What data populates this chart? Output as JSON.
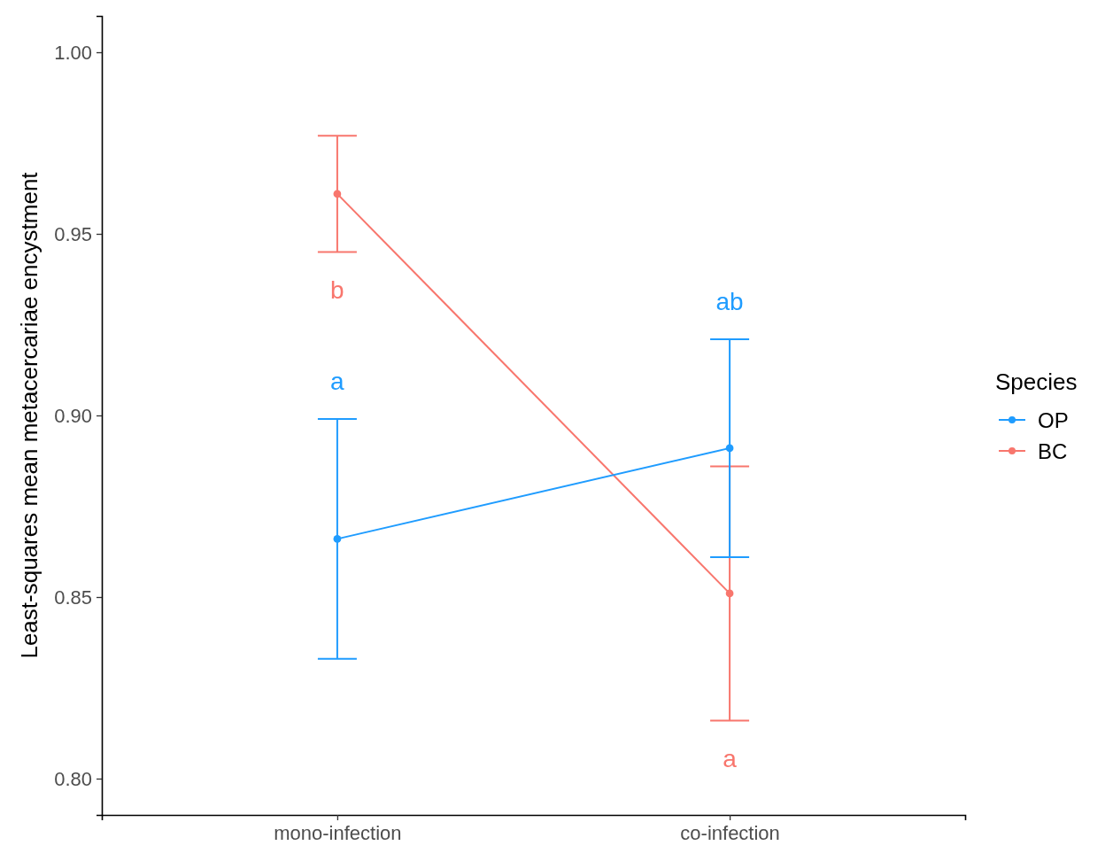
{
  "chart_data": {
    "type": "line",
    "ylabel": "Least-squares mean metacercariae encystment",
    "legend_title": "Species",
    "categories": [
      "mono-infection",
      "co-infection"
    ],
    "series": [
      {
        "name": "OP",
        "color": "#1f9cff",
        "values": [
          0.866,
          0.891
        ],
        "errors": [
          0.033,
          0.03
        ]
      },
      {
        "name": "BC",
        "color": "#f8766d",
        "values": [
          0.961,
          0.851
        ],
        "errors": [
          0.016,
          0.035
        ]
      }
    ],
    "annotations": [
      {
        "text": "b",
        "x": "mono-infection",
        "y": 0.945
      },
      {
        "text": "a",
        "x": "mono-infection",
        "y": 0.899
      },
      {
        "text": "ab",
        "x": "co-infection",
        "y": 0.921
      },
      {
        "text": "a",
        "x": "co-infection",
        "y": 0.816
      }
    ],
    "ylim": [
      0.79,
      1.01
    ],
    "yticks": [
      {
        "value": 0.8,
        "label": "0.80"
      },
      0.85,
      {
        "value": 0.9,
        "label": "0.90"
      },
      0.95,
      {
        "value": 1.0,
        "label": "1.00"
      }
    ],
    "legend": "right",
    "marker": "circle",
    "line_style": "solid",
    "grid": false
  }
}
